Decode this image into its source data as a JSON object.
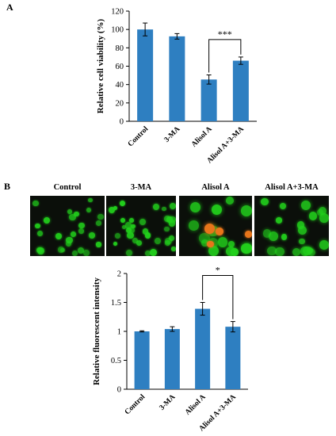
{
  "panel_a_letter": "A",
  "panel_b_letter": "B",
  "images": {
    "labels": [
      "Control",
      "3-MA",
      "Alisol A",
      "Alisol A+3-MA"
    ],
    "colors": {
      "nucleus": "#22d11c",
      "autophagy": "#e8751a",
      "background": "#0b0f0a"
    }
  },
  "chart_data": [
    {
      "type": "bar",
      "categories": [
        "Control",
        "3-MA",
        "Alisol A",
        "Alisol A+3-MA"
      ],
      "values": [
        100,
        92.5,
        45.5,
        66
      ],
      "errors": [
        7,
        3,
        5,
        4
      ],
      "ylabel": "Relative cell viability (%)",
      "ylim": [
        0,
        120
      ],
      "yticks": [
        "0",
        "20",
        "40",
        "60",
        "80",
        "100",
        "120"
      ],
      "bar_color": "#2e7fc1",
      "significance": {
        "from": 2,
        "to": 3,
        "label": "***"
      },
      "grid": false
    },
    {
      "type": "bar",
      "categories": [
        "Control",
        "3-MA",
        "Alisol A",
        "Alisol A+3-MA"
      ],
      "values": [
        1.0,
        1.04,
        1.39,
        1.08
      ],
      "errors": [
        0.01,
        0.04,
        0.11,
        0.09
      ],
      "ylabel": "Relative fluorescent intensity",
      "ylim": [
        0,
        2
      ],
      "yticks": [
        "0",
        "0.5",
        "1",
        "1.5",
        "2"
      ],
      "bar_color": "#2e7fc1",
      "significance": {
        "from": 2,
        "to": 3,
        "label": "*"
      },
      "grid": false
    }
  ]
}
